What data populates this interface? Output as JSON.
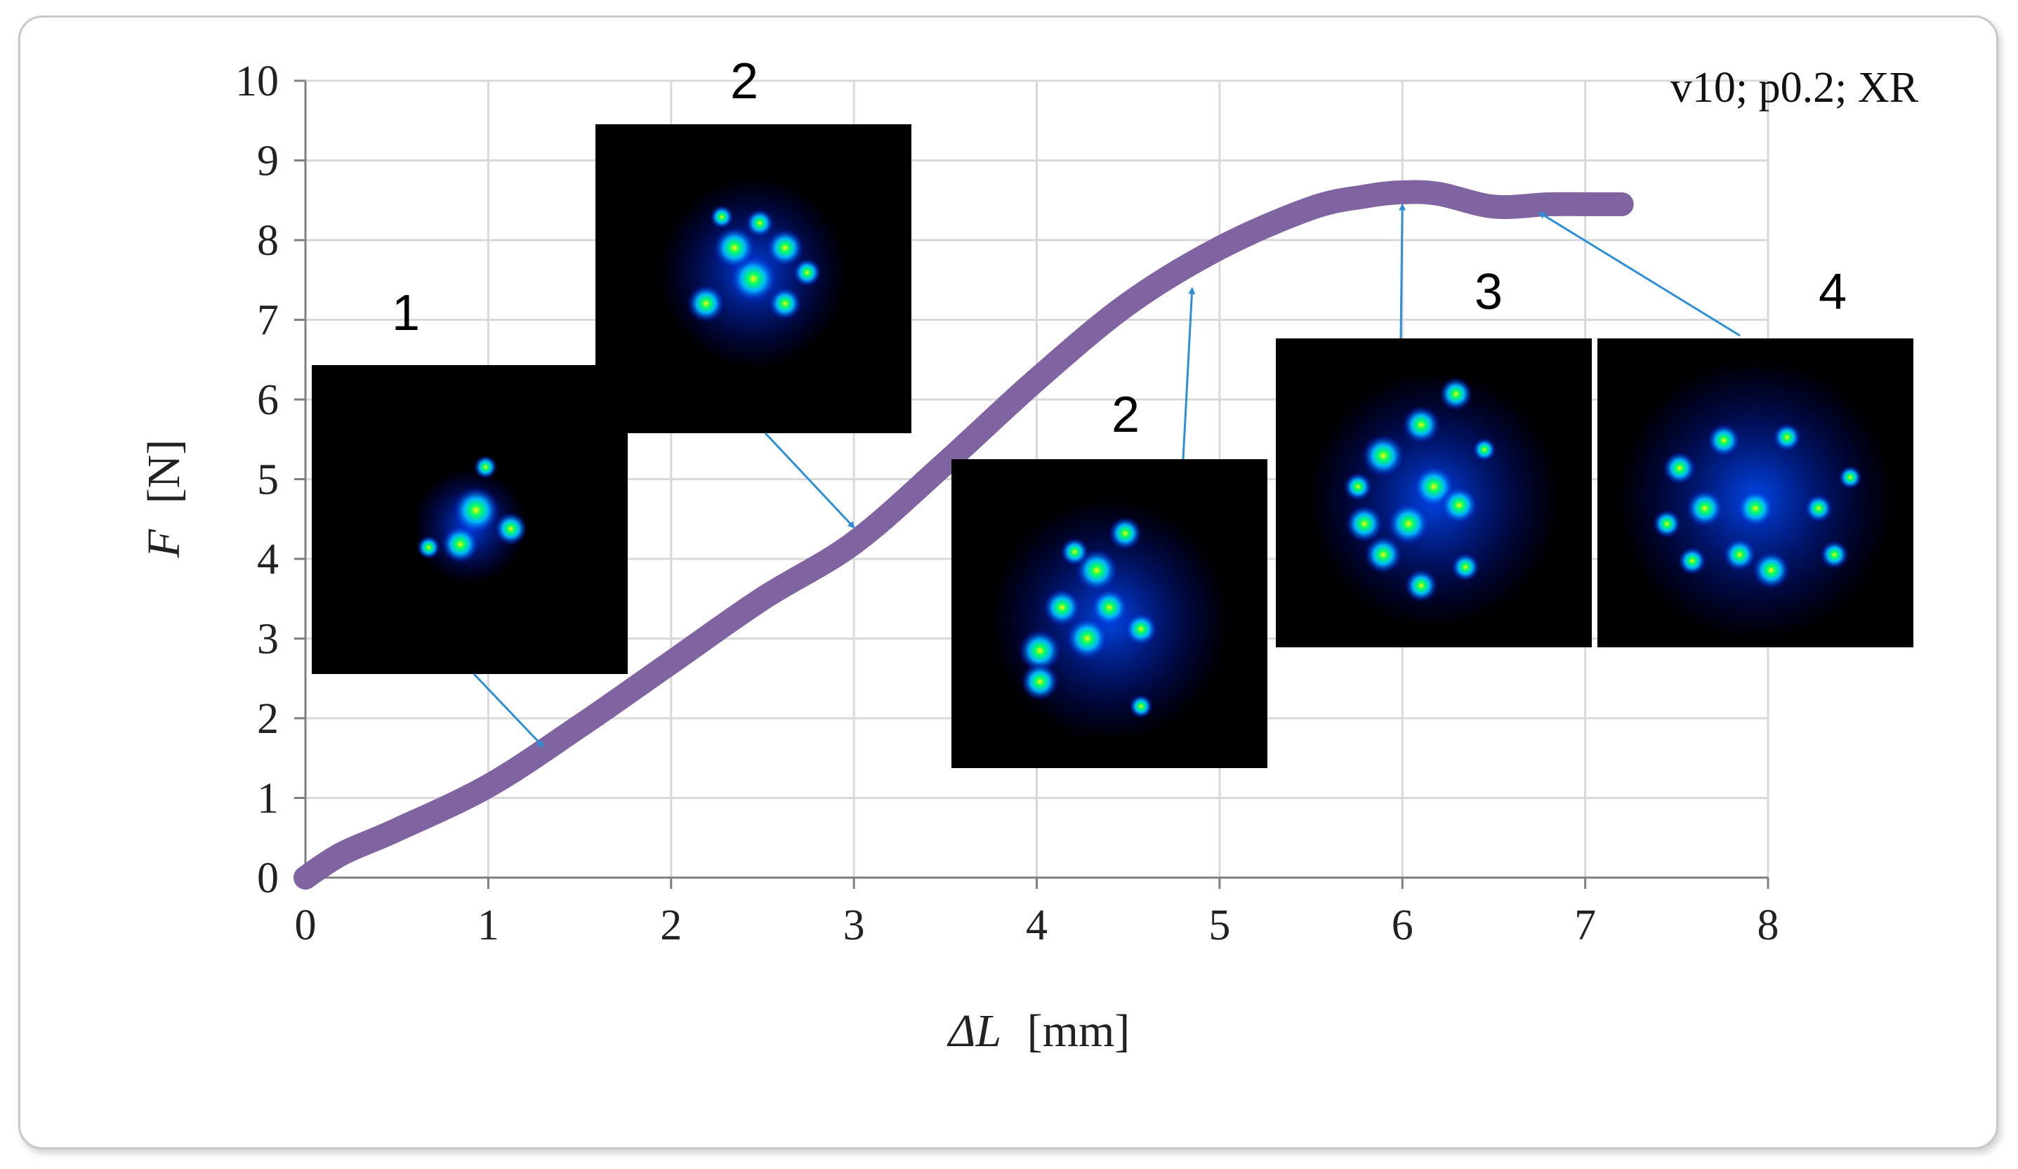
{
  "chart_data": {
    "type": "line",
    "annotation": "v10; p0.2; XR",
    "xlabel": {
      "symbol": "ΔL",
      "unit": "[mm]"
    },
    "ylabel": {
      "symbol": "F",
      "unit": "[N]"
    },
    "xlim": [
      0,
      8
    ],
    "ylim": [
      0,
      10
    ],
    "x_ticks": [
      "0",
      "1",
      "2",
      "3",
      "4",
      "5",
      "6",
      "7",
      "8"
    ],
    "y_ticks": [
      "0",
      "1",
      "2",
      "3",
      "4",
      "5",
      "6",
      "7",
      "8",
      "9",
      "10"
    ],
    "grid": true,
    "series": [
      {
        "color": "#8064a2",
        "x": [
          0,
          0.2,
          0.5,
          1.0,
          1.5,
          2.0,
          2.5,
          3.0,
          3.5,
          4.0,
          4.5,
          5.0,
          5.5,
          5.8,
          6.0,
          6.2,
          6.5,
          6.8,
          7.0,
          7.2
        ],
        "y": [
          0,
          0.3,
          0.6,
          1.15,
          1.9,
          2.7,
          3.5,
          4.2,
          5.2,
          6.25,
          7.2,
          7.9,
          8.4,
          8.55,
          8.6,
          8.58,
          8.42,
          8.45,
          8.45,
          8.45
        ]
      }
    ],
    "insets": [
      {
        "label": "1",
        "arrow_to": [
          1.3,
          1.75
        ]
      },
      {
        "label": "2",
        "arrow_to": [
          3.0,
          4.5
        ]
      },
      {
        "label": "2",
        "arrow_to": [
          4.85,
          7.5
        ]
      },
      {
        "label": "3",
        "arrow_to": [
          6.0,
          8.55
        ]
      },
      {
        "label": "4",
        "arrow_to": [
          6.75,
          8.45
        ]
      }
    ]
  }
}
